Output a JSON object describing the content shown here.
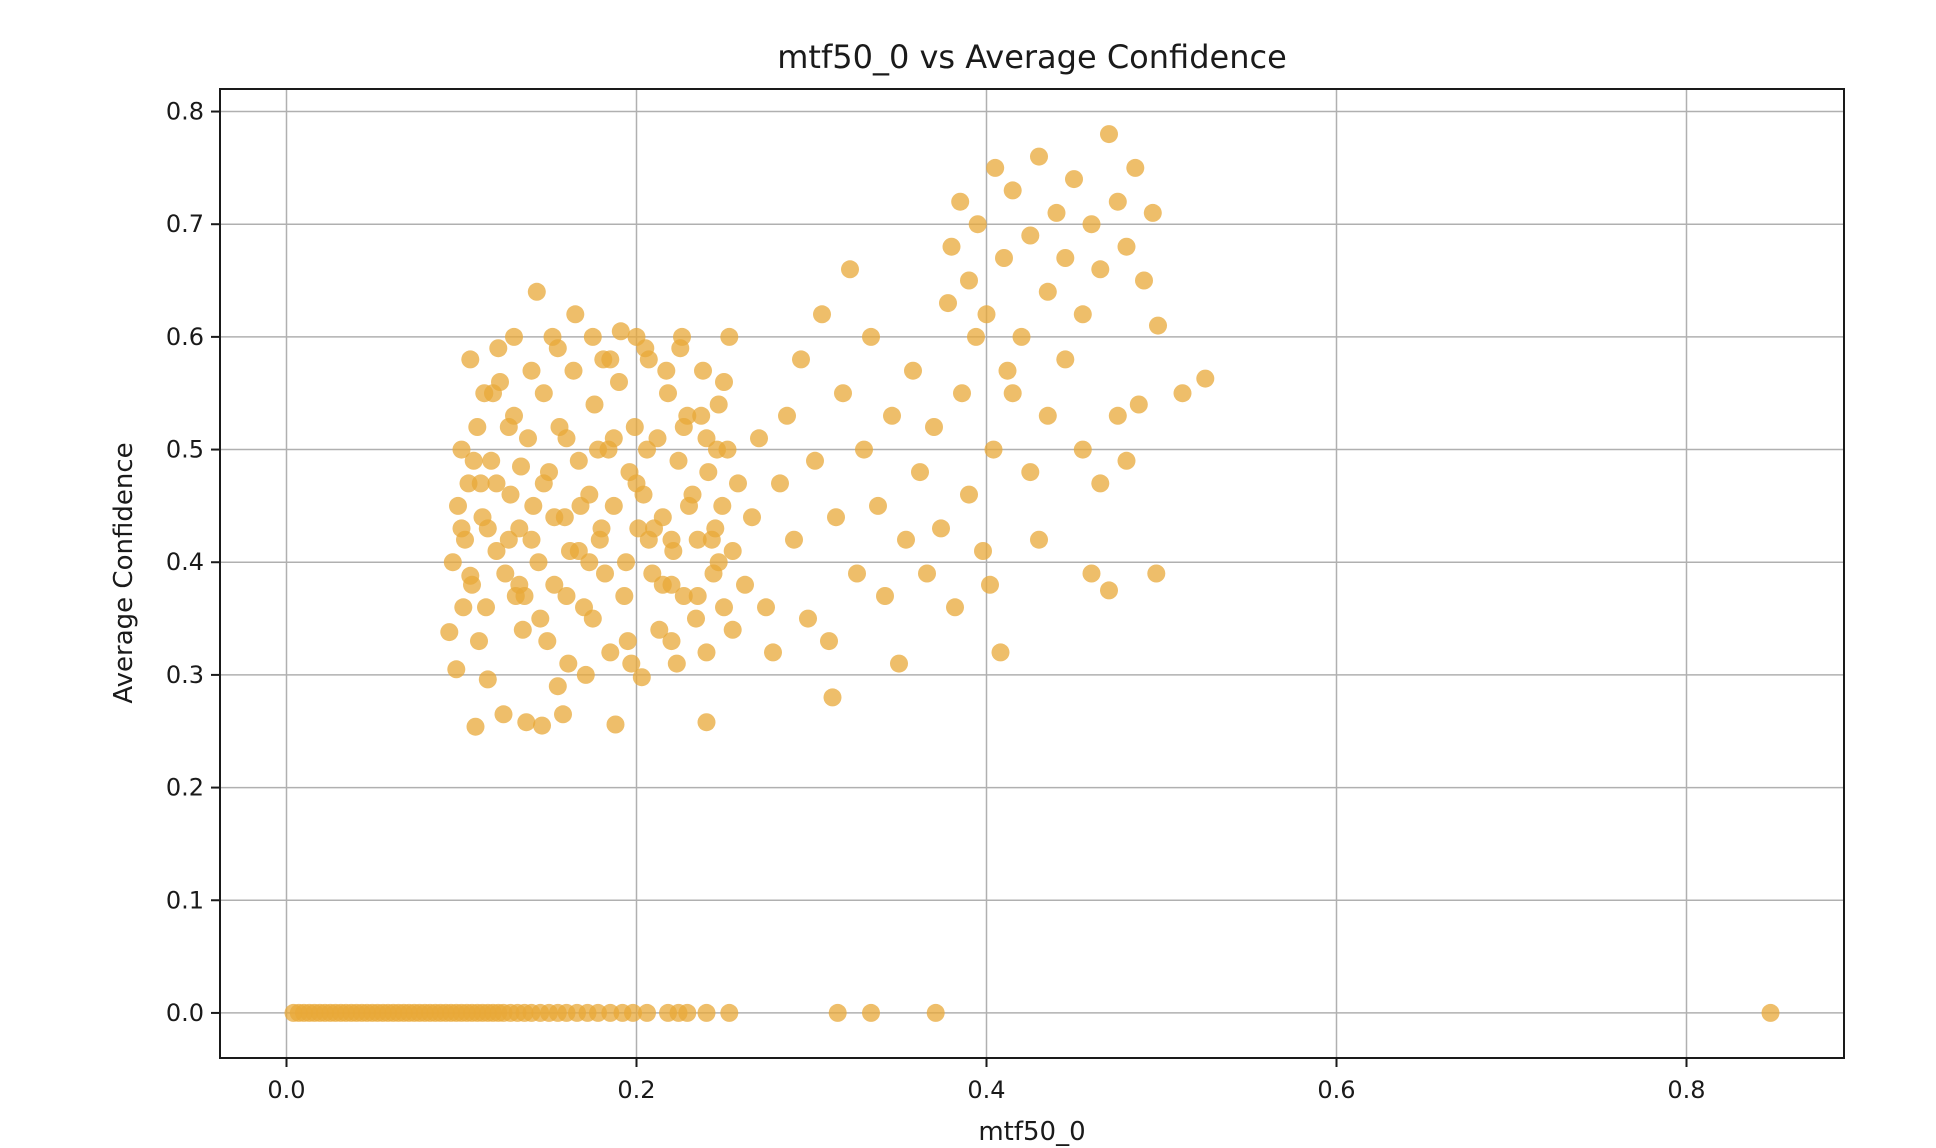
{
  "chart_data": {
    "type": "scatter",
    "title": "mtf50_0 vs Average Confidence",
    "xlabel": "mtf50_0",
    "ylabel": "Average Confidence",
    "xlim": [
      -0.038,
      0.89
    ],
    "ylim": [
      -0.04,
      0.82
    ],
    "xticks": [
      0.0,
      0.2,
      0.4,
      0.6,
      0.8
    ],
    "xtick_labels": [
      "0.0",
      "0.2",
      "0.4",
      "0.6",
      "0.8"
    ],
    "yticks": [
      0.0,
      0.1,
      0.2,
      0.3,
      0.4,
      0.5,
      0.6,
      0.7,
      0.8
    ],
    "ytick_labels": [
      "0.0",
      "0.1",
      "0.2",
      "0.3",
      "0.4",
      "0.5",
      "0.6",
      "0.7",
      "0.8"
    ],
    "grid": true,
    "legend": "none",
    "marker_color": "#E8A838",
    "marker_alpha": 0.75,
    "series": [
      {
        "points": [
          [
            0.004,
            0.0
          ],
          [
            0.007,
            0.0
          ],
          [
            0.01,
            0.0
          ],
          [
            0.013,
            0.0
          ],
          [
            0.016,
            0.0
          ],
          [
            0.019,
            0.0
          ],
          [
            0.022,
            0.0
          ],
          [
            0.025,
            0.0
          ],
          [
            0.028,
            0.0
          ],
          [
            0.031,
            0.0
          ],
          [
            0.034,
            0.0
          ],
          [
            0.037,
            0.0
          ],
          [
            0.04,
            0.0
          ],
          [
            0.043,
            0.0
          ],
          [
            0.046,
            0.0
          ],
          [
            0.049,
            0.0
          ],
          [
            0.052,
            0.0
          ],
          [
            0.055,
            0.0
          ],
          [
            0.058,
            0.0
          ],
          [
            0.061,
            0.0
          ],
          [
            0.064,
            0.0
          ],
          [
            0.067,
            0.0
          ],
          [
            0.07,
            0.0
          ],
          [
            0.073,
            0.0
          ],
          [
            0.076,
            0.0
          ],
          [
            0.079,
            0.0
          ],
          [
            0.082,
            0.0
          ],
          [
            0.085,
            0.0
          ],
          [
            0.088,
            0.0
          ],
          [
            0.091,
            0.0
          ],
          [
            0.094,
            0.0
          ],
          [
            0.097,
            0.0
          ],
          [
            0.1,
            0.0
          ],
          [
            0.103,
            0.0
          ],
          [
            0.106,
            0.0
          ],
          [
            0.109,
            0.0
          ],
          [
            0.112,
            0.0
          ],
          [
            0.115,
            0.0
          ],
          [
            0.118,
            0.0
          ],
          [
            0.121,
            0.0
          ],
          [
            0.124,
            0.0
          ],
          [
            0.128,
            0.0
          ],
          [
            0.132,
            0.0
          ],
          [
            0.136,
            0.0
          ],
          [
            0.14,
            0.0
          ],
          [
            0.145,
            0.0
          ],
          [
            0.15,
            0.0
          ],
          [
            0.155,
            0.0
          ],
          [
            0.16,
            0.0
          ],
          [
            0.166,
            0.0
          ],
          [
            0.172,
            0.0
          ],
          [
            0.178,
            0.0
          ],
          [
            0.185,
            0.0
          ],
          [
            0.192,
            0.0
          ],
          [
            0.198,
            0.0
          ],
          [
            0.206,
            0.0
          ],
          [
            0.218,
            0.0
          ],
          [
            0.224,
            0.0
          ],
          [
            0.229,
            0.0
          ],
          [
            0.24,
            0.0
          ],
          [
            0.253,
            0.0
          ],
          [
            0.315,
            0.0
          ],
          [
            0.334,
            0.0
          ],
          [
            0.371,
            0.0
          ],
          [
            0.848,
            0.0
          ],
          [
            0.093,
            0.338
          ],
          [
            0.097,
            0.305
          ],
          [
            0.101,
            0.36
          ],
          [
            0.105,
            0.388
          ],
          [
            0.108,
            0.254
          ],
          [
            0.111,
            0.47
          ],
          [
            0.115,
            0.296
          ],
          [
            0.118,
            0.55
          ],
          [
            0.121,
            0.59
          ],
          [
            0.124,
            0.265
          ],
          [
            0.127,
            0.42
          ],
          [
            0.131,
            0.37
          ],
          [
            0.134,
            0.485
          ],
          [
            0.137,
            0.258
          ],
          [
            0.14,
            0.57
          ],
          [
            0.143,
            0.64
          ],
          [
            0.146,
            0.255
          ],
          [
            0.149,
            0.33
          ],
          [
            0.152,
            0.6
          ],
          [
            0.155,
            0.29
          ],
          [
            0.158,
            0.265
          ],
          [
            0.161,
            0.31
          ],
          [
            0.165,
            0.62
          ],
          [
            0.168,
            0.45
          ],
          [
            0.171,
            0.3
          ],
          [
            0.175,
            0.35
          ],
          [
            0.178,
            0.5
          ],
          [
            0.181,
            0.58
          ],
          [
            0.185,
            0.32
          ],
          [
            0.188,
            0.256
          ],
          [
            0.191,
            0.605
          ],
          [
            0.194,
            0.4
          ],
          [
            0.197,
            0.31
          ],
          [
            0.2,
            0.6
          ],
          [
            0.203,
            0.298
          ],
          [
            0.206,
            0.5
          ],
          [
            0.21,
            0.43
          ],
          [
            0.213,
            0.34
          ],
          [
            0.217,
            0.57
          ],
          [
            0.22,
            0.38
          ],
          [
            0.223,
            0.31
          ],
          [
            0.226,
            0.6
          ],
          [
            0.23,
            0.45
          ],
          [
            0.234,
            0.35
          ],
          [
            0.237,
            0.53
          ],
          [
            0.24,
            0.258
          ],
          [
            0.243,
            0.42
          ],
          [
            0.246,
            0.5
          ],
          [
            0.25,
            0.36
          ],
          [
            0.253,
            0.6
          ],
          [
            0.095,
            0.4
          ],
          [
            0.098,
            0.45
          ],
          [
            0.1,
            0.5
          ],
          [
            0.102,
            0.42
          ],
          [
            0.104,
            0.47
          ],
          [
            0.106,
            0.38
          ],
          [
            0.109,
            0.52
          ],
          [
            0.112,
            0.44
          ],
          [
            0.114,
            0.36
          ],
          [
            0.117,
            0.49
          ],
          [
            0.12,
            0.41
          ],
          [
            0.122,
            0.56
          ],
          [
            0.125,
            0.39
          ],
          [
            0.128,
            0.46
          ],
          [
            0.13,
            0.53
          ],
          [
            0.133,
            0.43
          ],
          [
            0.136,
            0.37
          ],
          [
            0.138,
            0.51
          ],
          [
            0.141,
            0.45
          ],
          [
            0.144,
            0.4
          ],
          [
            0.147,
            0.55
          ],
          [
            0.15,
            0.48
          ],
          [
            0.153,
            0.38
          ],
          [
            0.156,
            0.52
          ],
          [
            0.159,
            0.44
          ],
          [
            0.162,
            0.41
          ],
          [
            0.164,
            0.57
          ],
          [
            0.167,
            0.49
          ],
          [
            0.17,
            0.36
          ],
          [
            0.173,
            0.46
          ],
          [
            0.176,
            0.54
          ],
          [
            0.179,
            0.42
          ],
          [
            0.182,
            0.39
          ],
          [
            0.184,
            0.5
          ],
          [
            0.187,
            0.45
          ],
          [
            0.19,
            0.56
          ],
          [
            0.193,
            0.37
          ],
          [
            0.196,
            0.48
          ],
          [
            0.199,
            0.52
          ],
          [
            0.201,
            0.43
          ],
          [
            0.204,
            0.46
          ],
          [
            0.207,
            0.58
          ],
          [
            0.209,
            0.39
          ],
          [
            0.212,
            0.51
          ],
          [
            0.215,
            0.44
          ],
          [
            0.218,
            0.55
          ],
          [
            0.221,
            0.41
          ],
          [
            0.224,
            0.49
          ],
          [
            0.227,
            0.37
          ],
          [
            0.229,
            0.53
          ],
          [
            0.232,
            0.46
          ],
          [
            0.235,
            0.42
          ],
          [
            0.238,
            0.57
          ],
          [
            0.241,
            0.48
          ],
          [
            0.244,
            0.39
          ],
          [
            0.247,
            0.54
          ],
          [
            0.249,
            0.45
          ],
          [
            0.252,
            0.5
          ],
          [
            0.255,
            0.41
          ],
          [
            0.258,
            0.47
          ],
          [
            0.262,
            0.38
          ],
          [
            0.266,
            0.44
          ],
          [
            0.27,
            0.51
          ],
          [
            0.274,
            0.36
          ],
          [
            0.278,
            0.32
          ],
          [
            0.282,
            0.47
          ],
          [
            0.286,
            0.53
          ],
          [
            0.29,
            0.42
          ],
          [
            0.294,
            0.58
          ],
          [
            0.298,
            0.35
          ],
          [
            0.302,
            0.49
          ],
          [
            0.306,
            0.62
          ],
          [
            0.31,
            0.33
          ],
          [
            0.312,
            0.28
          ],
          [
            0.314,
            0.44
          ],
          [
            0.318,
            0.55
          ],
          [
            0.322,
            0.66
          ],
          [
            0.326,
            0.39
          ],
          [
            0.33,
            0.5
          ],
          [
            0.334,
            0.6
          ],
          [
            0.338,
            0.45
          ],
          [
            0.342,
            0.37
          ],
          [
            0.346,
            0.53
          ],
          [
            0.35,
            0.31
          ],
          [
            0.354,
            0.42
          ],
          [
            0.358,
            0.57
          ],
          [
            0.362,
            0.48
          ],
          [
            0.366,
            0.39
          ],
          [
            0.37,
            0.52
          ],
          [
            0.374,
            0.43
          ],
          [
            0.378,
            0.63
          ],
          [
            0.382,
            0.36
          ],
          [
            0.386,
            0.55
          ],
          [
            0.39,
            0.46
          ],
          [
            0.394,
            0.6
          ],
          [
            0.398,
            0.41
          ],
          [
            0.402,
            0.38
          ],
          [
            0.404,
            0.5
          ],
          [
            0.408,
            0.32
          ],
          [
            0.412,
            0.57
          ],
          [
            0.38,
            0.68
          ],
          [
            0.385,
            0.72
          ],
          [
            0.39,
            0.65
          ],
          [
            0.395,
            0.7
          ],
          [
            0.4,
            0.62
          ],
          [
            0.405,
            0.75
          ],
          [
            0.41,
            0.67
          ],
          [
            0.415,
            0.73
          ],
          [
            0.42,
            0.6
          ],
          [
            0.425,
            0.69
          ],
          [
            0.43,
            0.76
          ],
          [
            0.435,
            0.64
          ],
          [
            0.44,
            0.71
          ],
          [
            0.445,
            0.67
          ],
          [
            0.45,
            0.74
          ],
          [
            0.455,
            0.62
          ],
          [
            0.46,
            0.7
          ],
          [
            0.465,
            0.66
          ],
          [
            0.47,
            0.78
          ],
          [
            0.475,
            0.72
          ],
          [
            0.48,
            0.68
          ],
          [
            0.485,
            0.75
          ],
          [
            0.49,
            0.65
          ],
          [
            0.495,
            0.71
          ],
          [
            0.498,
            0.61
          ],
          [
            0.415,
            0.55
          ],
          [
            0.425,
            0.48
          ],
          [
            0.435,
            0.53
          ],
          [
            0.445,
            0.58
          ],
          [
            0.455,
            0.5
          ],
          [
            0.46,
            0.39
          ],
          [
            0.465,
            0.47
          ],
          [
            0.47,
            0.375
          ],
          [
            0.475,
            0.53
          ],
          [
            0.48,
            0.49
          ],
          [
            0.487,
            0.54
          ],
          [
            0.497,
            0.39
          ],
          [
            0.512,
            0.55
          ],
          [
            0.525,
            0.563
          ],
          [
            0.43,
            0.42
          ],
          [
            0.105,
            0.58
          ],
          [
            0.11,
            0.33
          ],
          [
            0.115,
            0.43
          ],
          [
            0.13,
            0.6
          ],
          [
            0.135,
            0.34
          ],
          [
            0.145,
            0.35
          ],
          [
            0.155,
            0.59
          ],
          [
            0.16,
            0.37
          ],
          [
            0.175,
            0.6
          ],
          [
            0.185,
            0.58
          ],
          [
            0.195,
            0.33
          ],
          [
            0.205,
            0.59
          ],
          [
            0.215,
            0.38
          ],
          [
            0.22,
            0.33
          ],
          [
            0.225,
            0.59
          ],
          [
            0.235,
            0.37
          ],
          [
            0.24,
            0.32
          ],
          [
            0.245,
            0.43
          ],
          [
            0.25,
            0.56
          ],
          [
            0.255,
            0.34
          ],
          [
            0.1,
            0.43
          ],
          [
            0.12,
            0.47
          ],
          [
            0.14,
            0.42
          ],
          [
            0.16,
            0.51
          ],
          [
            0.18,
            0.43
          ],
          [
            0.2,
            0.47
          ],
          [
            0.22,
            0.42
          ],
          [
            0.24,
            0.51
          ],
          [
            0.107,
            0.49
          ],
          [
            0.127,
            0.52
          ],
          [
            0.147,
            0.47
          ],
          [
            0.167,
            0.41
          ],
          [
            0.187,
            0.51
          ],
          [
            0.207,
            0.42
          ],
          [
            0.227,
            0.52
          ],
          [
            0.247,
            0.4
          ],
          [
            0.113,
            0.55
          ],
          [
            0.133,
            0.38
          ],
          [
            0.153,
            0.44
          ],
          [
            0.173,
            0.4
          ]
        ]
      }
    ]
  }
}
